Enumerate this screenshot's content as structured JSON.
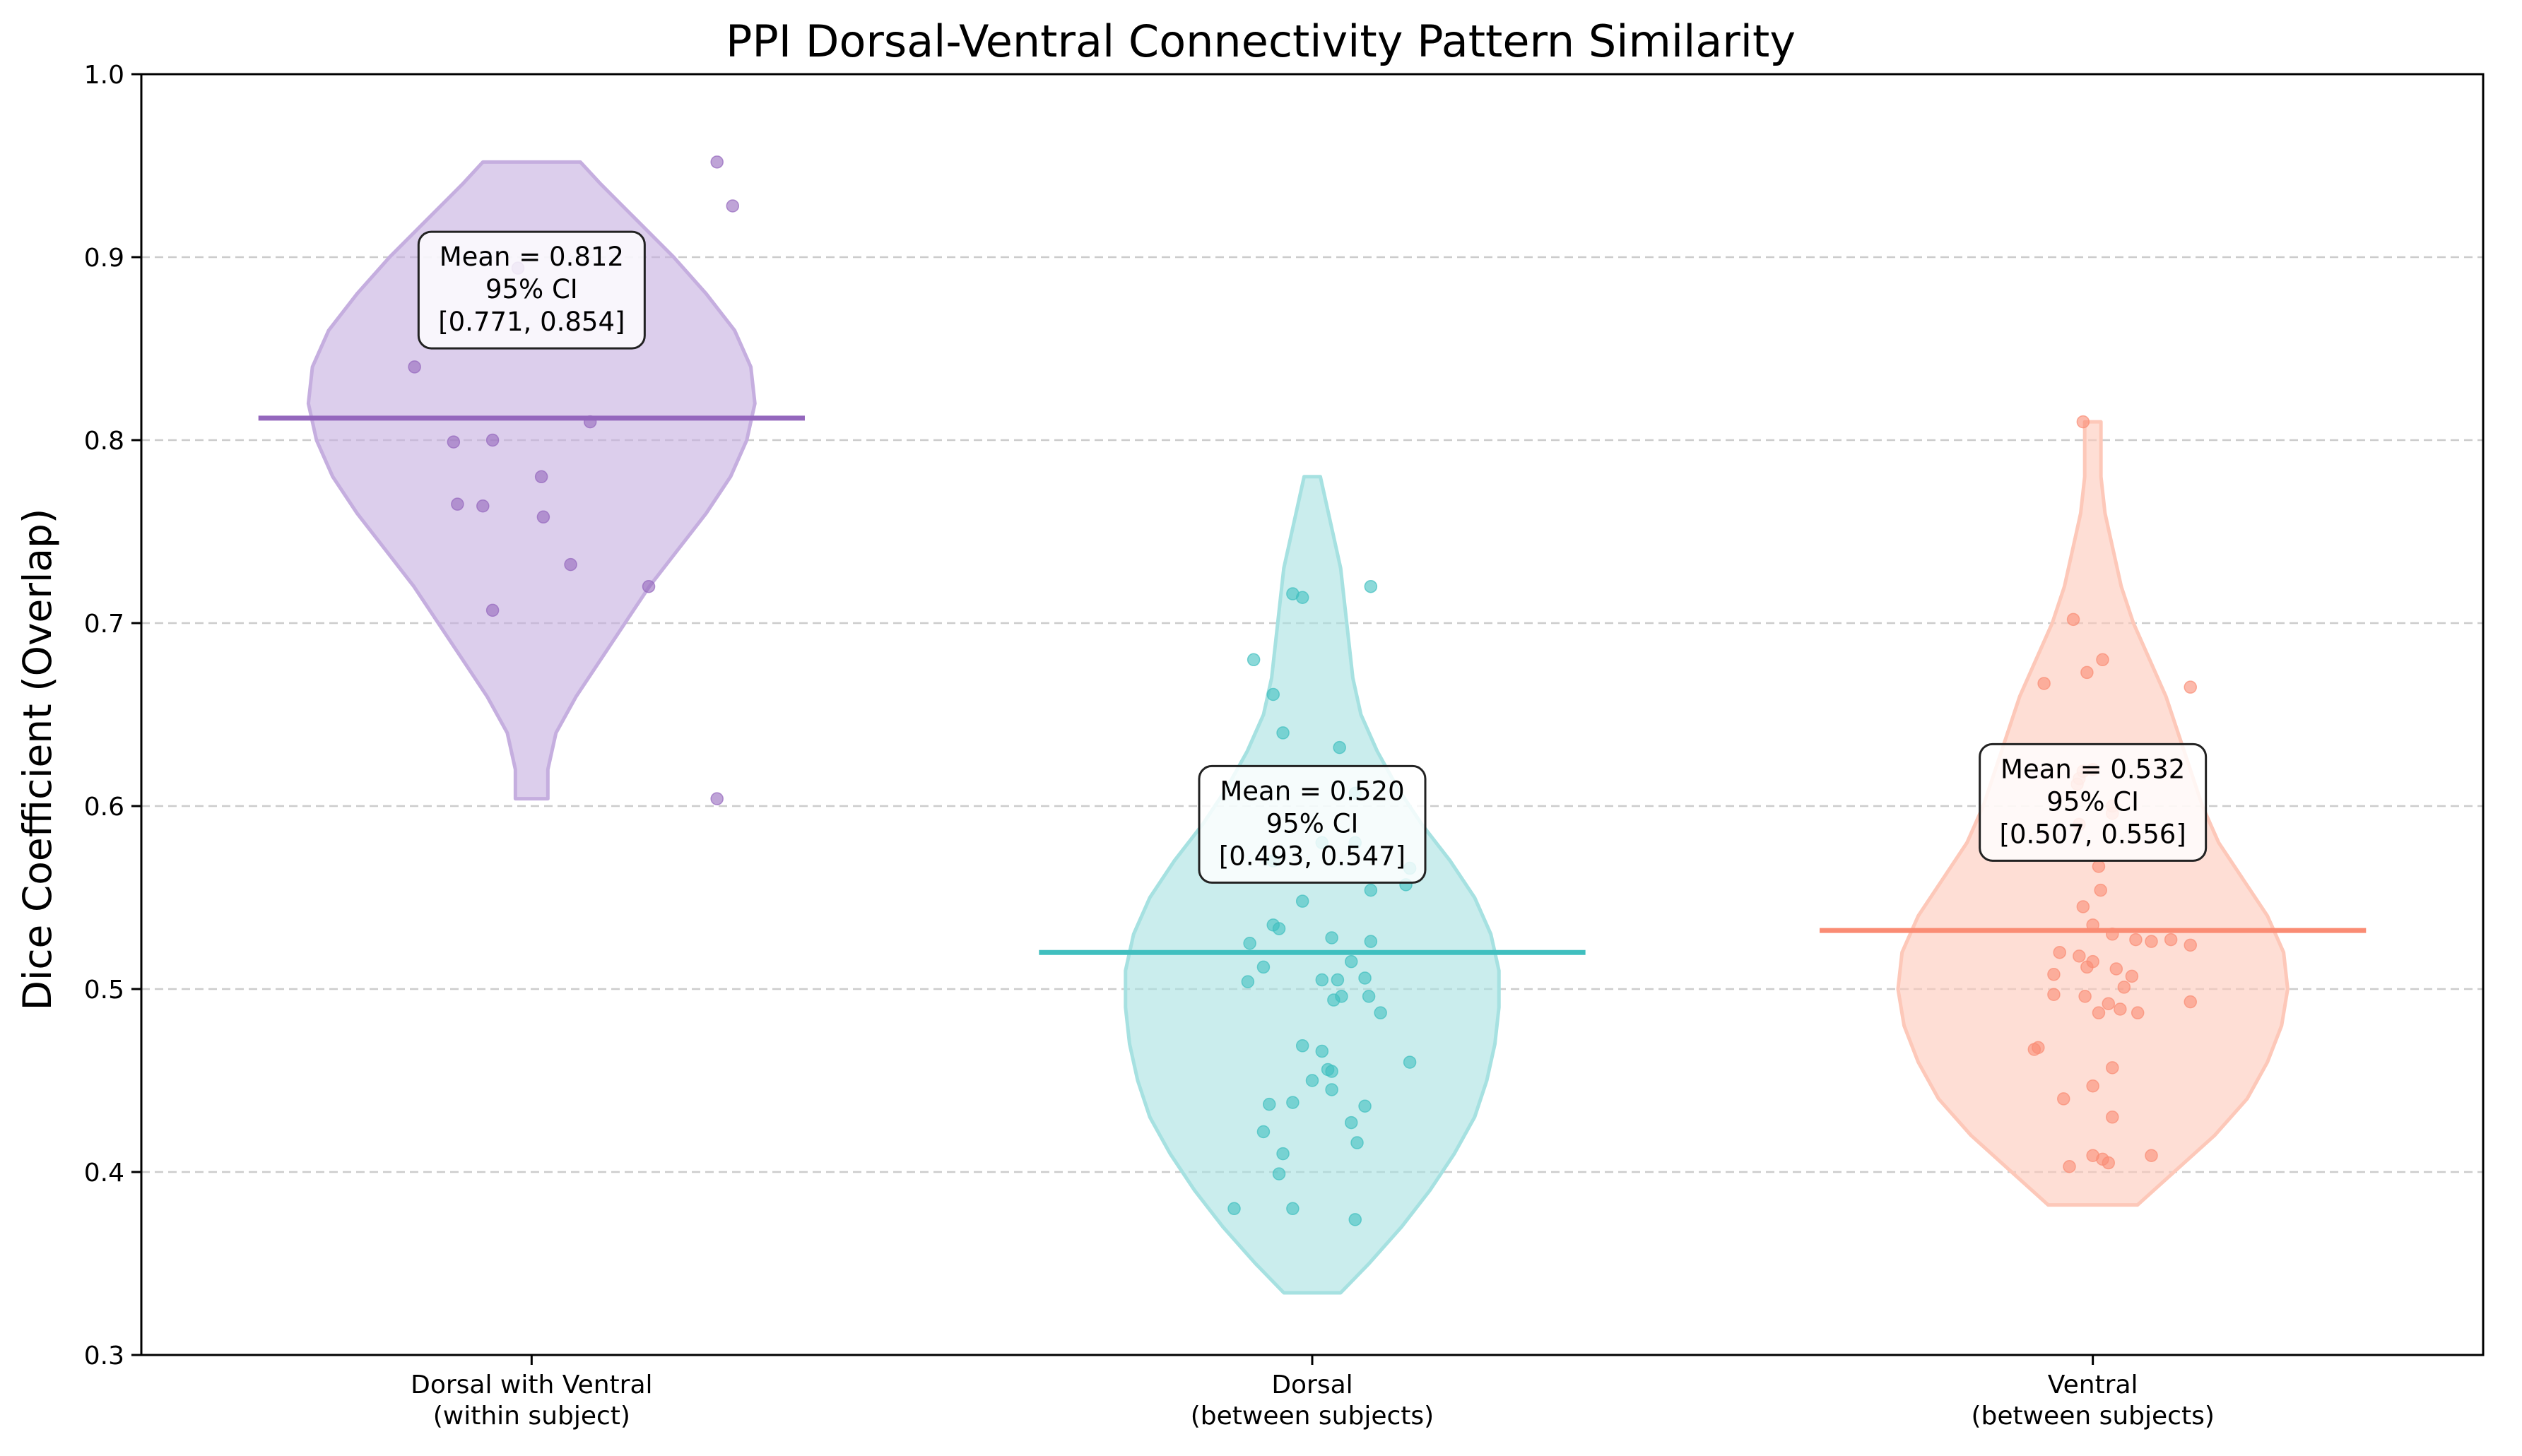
{
  "chart_data": {
    "type": "violin",
    "title": "PPI Dorsal-Ventral Connectivity Pattern Similarity",
    "xlabel": "",
    "ylabel": "Dice Coefficient (Overlap)",
    "ylim": [
      0.3,
      1.0
    ],
    "yticks": [
      "0.3",
      "0.4",
      "0.5",
      "0.6",
      "0.7",
      "0.8",
      "0.9",
      "1.0"
    ],
    "grid": "y-dashed",
    "groups": [
      {
        "label_line1": "Dorsal with Ventral",
        "label_line2": "(within subject)",
        "color": "#9467bd",
        "fill": "#c5aedf",
        "mean": 0.812,
        "ann": [
          "Mean = 0.812",
          "95% CI",
          "[0.771, 0.854]"
        ],
        "points": [
          [
            0.95,
            0.952
          ],
          [
            1.03,
            0.928
          ],
          [
            -0.07,
            0.894
          ],
          [
            -0.4,
            0.799
          ],
          [
            -0.2,
            0.8
          ],
          [
            -0.38,
            0.765
          ],
          [
            -0.25,
            0.764
          ],
          [
            0.06,
            0.758
          ],
          [
            0.2,
            0.732
          ],
          [
            -0.2,
            0.707
          ],
          [
            0.3,
            0.81
          ],
          [
            0.05,
            0.78
          ],
          [
            0.95,
            0.604
          ],
          [
            0.6,
            0.72
          ],
          [
            -0.6,
            0.84
          ]
        ],
        "violin": [
          [
            0.604,
            0.08
          ],
          [
            0.62,
            0.08
          ],
          [
            0.64,
            0.12
          ],
          [
            0.66,
            0.22
          ],
          [
            0.68,
            0.34
          ],
          [
            0.7,
            0.46
          ],
          [
            0.72,
            0.58
          ],
          [
            0.74,
            0.72
          ],
          [
            0.76,
            0.86
          ],
          [
            0.78,
            0.98
          ],
          [
            0.8,
            1.06
          ],
          [
            0.82,
            1.1
          ],
          [
            0.84,
            1.08
          ],
          [
            0.86,
            1.0
          ],
          [
            0.88,
            0.86
          ],
          [
            0.9,
            0.7
          ],
          [
            0.92,
            0.52
          ],
          [
            0.94,
            0.34
          ],
          [
            0.952,
            0.24
          ]
        ]
      },
      {
        "label_line1": "Dorsal",
        "label_line2": "(between subjects)",
        "color": "#40bfbf",
        "fill": "#a6e1e1",
        "mean": 0.52,
        "ann": [
          "Mean = 0.520",
          "95% CI",
          "[0.493, 0.547]"
        ],
        "points": [
          [
            -0.3,
            0.68
          ],
          [
            -0.2,
            0.661
          ],
          [
            -0.15,
            0.64
          ],
          [
            0.14,
            0.632
          ],
          [
            0.22,
            0.607
          ],
          [
            -0.2,
            0.57
          ],
          [
            0.05,
            0.58
          ],
          [
            0.22,
            0.58
          ],
          [
            0.5,
            0.566
          ],
          [
            0.48,
            0.557
          ],
          [
            0.3,
            0.554
          ],
          [
            -0.05,
            0.548
          ],
          [
            -0.2,
            0.535
          ],
          [
            -0.17,
            0.533
          ],
          [
            -0.32,
            0.525
          ],
          [
            0.1,
            0.528
          ],
          [
            0.3,
            0.526
          ],
          [
            0.2,
            0.515
          ],
          [
            -0.25,
            0.512
          ],
          [
            -0.33,
            0.504
          ],
          [
            0.05,
            0.505
          ],
          [
            0.13,
            0.505
          ],
          [
            0.27,
            0.506
          ],
          [
            0.15,
            0.496
          ],
          [
            0.11,
            0.494
          ],
          [
            0.29,
            0.496
          ],
          [
            0.35,
            0.487
          ],
          [
            0.5,
            0.46
          ],
          [
            -0.05,
            0.469
          ],
          [
            0.05,
            0.466
          ],
          [
            0.08,
            0.456
          ],
          [
            0.1,
            0.455
          ],
          [
            0.0,
            0.45
          ],
          [
            0.1,
            0.445
          ],
          [
            -0.22,
            0.437
          ],
          [
            -0.1,
            0.438
          ],
          [
            0.27,
            0.436
          ],
          [
            0.2,
            0.427
          ],
          [
            -0.25,
            0.422
          ],
          [
            0.23,
            0.416
          ],
          [
            -0.15,
            0.41
          ],
          [
            -0.17,
            0.399
          ],
          [
            -0.4,
            0.38
          ],
          [
            -0.1,
            0.38
          ],
          [
            0.22,
            0.374
          ],
          [
            -0.1,
            0.716
          ],
          [
            -0.05,
            0.714
          ],
          [
            0.3,
            0.72
          ]
        ],
        "violin": [
          [
            0.334,
            0.14
          ],
          [
            0.35,
            0.28
          ],
          [
            0.37,
            0.44
          ],
          [
            0.39,
            0.58
          ],
          [
            0.41,
            0.7
          ],
          [
            0.43,
            0.8
          ],
          [
            0.45,
            0.86
          ],
          [
            0.47,
            0.9
          ],
          [
            0.49,
            0.92
          ],
          [
            0.51,
            0.92
          ],
          [
            0.53,
            0.88
          ],
          [
            0.55,
            0.8
          ],
          [
            0.57,
            0.68
          ],
          [
            0.59,
            0.54
          ],
          [
            0.61,
            0.42
          ],
          [
            0.63,
            0.32
          ],
          [
            0.65,
            0.24
          ],
          [
            0.67,
            0.2
          ],
          [
            0.69,
            0.18
          ],
          [
            0.71,
            0.16
          ],
          [
            0.73,
            0.14
          ],
          [
            0.75,
            0.1
          ],
          [
            0.77,
            0.06
          ],
          [
            0.78,
            0.04
          ]
        ]
      },
      {
        "label_line1": "Ventral",
        "label_line2": "(between subjects)",
        "color": "#fa8c74",
        "fill": "#fdc8b9",
        "mean": 0.532,
        "ann": [
          "Mean = 0.532",
          "95% CI",
          "[0.507, 0.556]"
        ],
        "points": [
          [
            -0.05,
            0.81
          ],
          [
            -0.1,
            0.702
          ],
          [
            -0.25,
            0.667
          ],
          [
            -0.03,
            0.673
          ],
          [
            0.05,
            0.68
          ],
          [
            0.5,
            0.665
          ],
          [
            -0.05,
            0.619
          ],
          [
            0.0,
            0.62
          ],
          [
            -0.07,
            0.615
          ],
          [
            -0.08,
            0.612
          ],
          [
            -0.07,
            0.59
          ],
          [
            0.1,
            0.6
          ],
          [
            0.1,
            0.596
          ],
          [
            0.03,
            0.567
          ],
          [
            0.04,
            0.554
          ],
          [
            -0.05,
            0.545
          ],
          [
            0.0,
            0.535
          ],
          [
            0.1,
            0.53
          ],
          [
            0.22,
            0.527
          ],
          [
            0.3,
            0.526
          ],
          [
            0.4,
            0.527
          ],
          [
            0.5,
            0.524
          ],
          [
            -0.17,
            0.52
          ],
          [
            -0.07,
            0.518
          ],
          [
            0.0,
            0.515
          ],
          [
            -0.03,
            0.512
          ],
          [
            0.12,
            0.511
          ],
          [
            0.2,
            0.507
          ],
          [
            -0.2,
            0.508
          ],
          [
            0.16,
            0.501
          ],
          [
            -0.2,
            0.497
          ],
          [
            -0.04,
            0.496
          ],
          [
            0.08,
            0.492
          ],
          [
            0.14,
            0.489
          ],
          [
            0.23,
            0.487
          ],
          [
            0.03,
            0.487
          ],
          [
            0.5,
            0.493
          ],
          [
            -0.28,
            0.468
          ],
          [
            -0.3,
            0.467
          ],
          [
            0.1,
            0.457
          ],
          [
            0.0,
            0.447
          ],
          [
            -0.15,
            0.44
          ],
          [
            0.1,
            0.43
          ],
          [
            0.0,
            0.409
          ],
          [
            0.05,
            0.407
          ],
          [
            0.08,
            0.405
          ],
          [
            0.3,
            0.409
          ],
          [
            -0.12,
            0.403
          ]
        ],
        "violin": [
          [
            0.382,
            0.22
          ],
          [
            0.4,
            0.4
          ],
          [
            0.42,
            0.6
          ],
          [
            0.44,
            0.76
          ],
          [
            0.46,
            0.86
          ],
          [
            0.48,
            0.93
          ],
          [
            0.5,
            0.96
          ],
          [
            0.52,
            0.94
          ],
          [
            0.54,
            0.86
          ],
          [
            0.56,
            0.74
          ],
          [
            0.58,
            0.62
          ],
          [
            0.6,
            0.54
          ],
          [
            0.62,
            0.48
          ],
          [
            0.64,
            0.42
          ],
          [
            0.66,
            0.36
          ],
          [
            0.68,
            0.28
          ],
          [
            0.7,
            0.2
          ],
          [
            0.72,
            0.14
          ],
          [
            0.74,
            0.1
          ],
          [
            0.76,
            0.06
          ],
          [
            0.78,
            0.04
          ],
          [
            0.8,
            0.04
          ],
          [
            0.81,
            0.04
          ]
        ]
      }
    ]
  }
}
